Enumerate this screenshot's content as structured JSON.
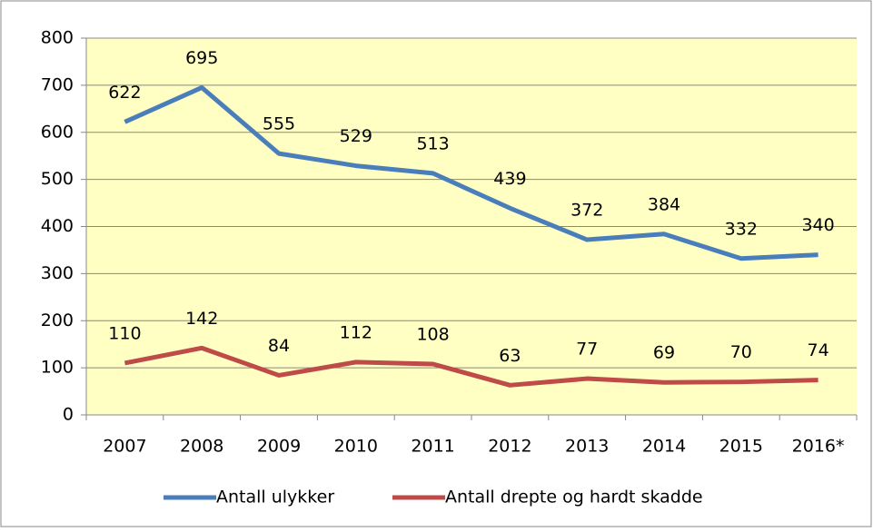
{
  "chart_data": {
    "type": "line",
    "categories": [
      "2007",
      "2008",
      "2009",
      "2010",
      "2011",
      "2012",
      "2013",
      "2014",
      "2015",
      "2016*"
    ],
    "series": [
      {
        "name": "Antall ulykker",
        "color": "#4a7ebb",
        "values": [
          622,
          695,
          555,
          529,
          513,
          439,
          372,
          384,
          332,
          340
        ]
      },
      {
        "name": "Antall drepte og hardt skadde",
        "color": "#be4b48",
        "values": [
          110,
          142,
          84,
          112,
          108,
          63,
          77,
          69,
          70,
          74
        ]
      }
    ],
    "ylim": [
      0,
      800
    ],
    "yticks": [
      0,
      100,
      200,
      300,
      400,
      500,
      600,
      700,
      800
    ],
    "grid": true,
    "legend": "bottom"
  }
}
